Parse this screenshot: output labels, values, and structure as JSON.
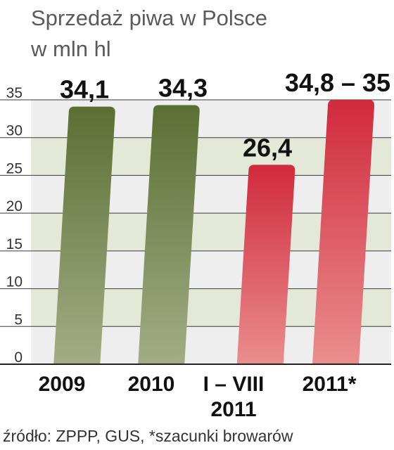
{
  "title": "Sprzedaż piwa w Polsce",
  "subtitle": "w mln hl",
  "source": "źródło: ZPPP, GUS, *szacunki browarów",
  "colors": {
    "green_dark": "#5b6f34",
    "green_light": "#a3ad85",
    "red_dark": "#d02a3d",
    "red_light": "#ea8e8e",
    "band_green": "#e4e8d6",
    "band_gray": "#eeeeee"
  },
  "chart_data": {
    "type": "bar",
    "categories": [
      "2009",
      "2010",
      "I – VIII\n2011",
      "2011*"
    ],
    "values": [
      34.1,
      34.3,
      26.4,
      35
    ],
    "data_labels": [
      "34,1",
      "34,3",
      "26,4",
      "34,8 – 35"
    ],
    "ylim": [
      0,
      35
    ],
    "yticks": [
      0,
      5,
      10,
      15,
      20,
      25,
      30,
      35
    ],
    "grid": true,
    "title": "Sprzedaż piwa w Polsce",
    "ylabel": "w mln hl"
  }
}
